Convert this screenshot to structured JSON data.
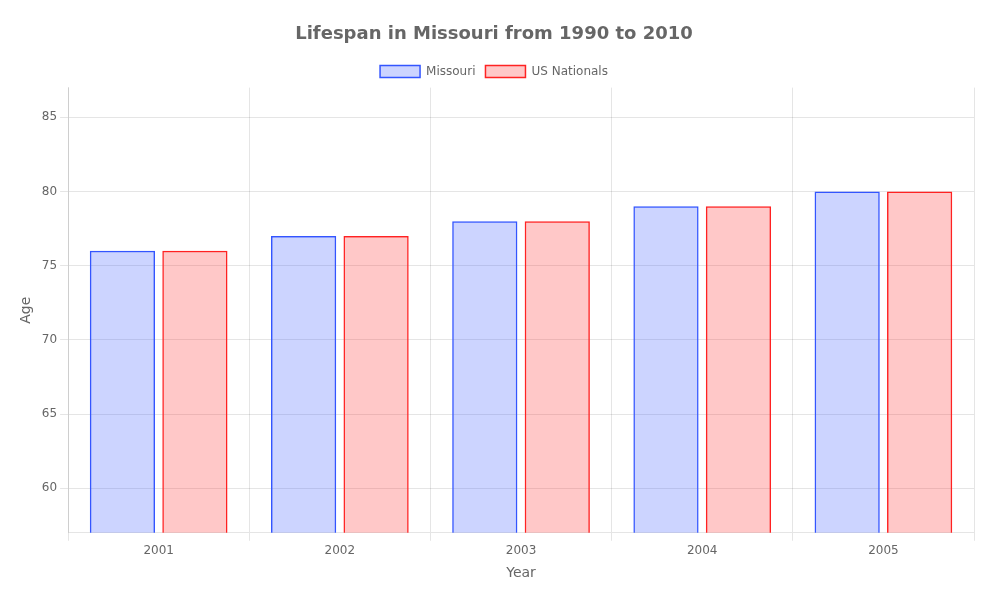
{
  "chart_data": {
    "type": "bar",
    "title": "Lifespan in Missouri from 1990 to 2010",
    "x_label": "Year",
    "y_label": "Age",
    "categories": [
      "2001",
      "2002",
      "2003",
      "2004",
      "2005"
    ],
    "series": [
      {
        "name": "Missouri",
        "color": "#3355ff",
        "values": [
          76,
          77,
          78,
          79,
          80
        ]
      },
      {
        "name": "US Nationals",
        "color": "#ff2222",
        "values": [
          76,
          77,
          78,
          79,
          80
        ]
      }
    ],
    "ylim": [
      57,
      87
    ],
    "yticks": [
      60,
      65,
      70,
      75,
      80,
      85
    ],
    "grid": true,
    "legend": "top"
  }
}
